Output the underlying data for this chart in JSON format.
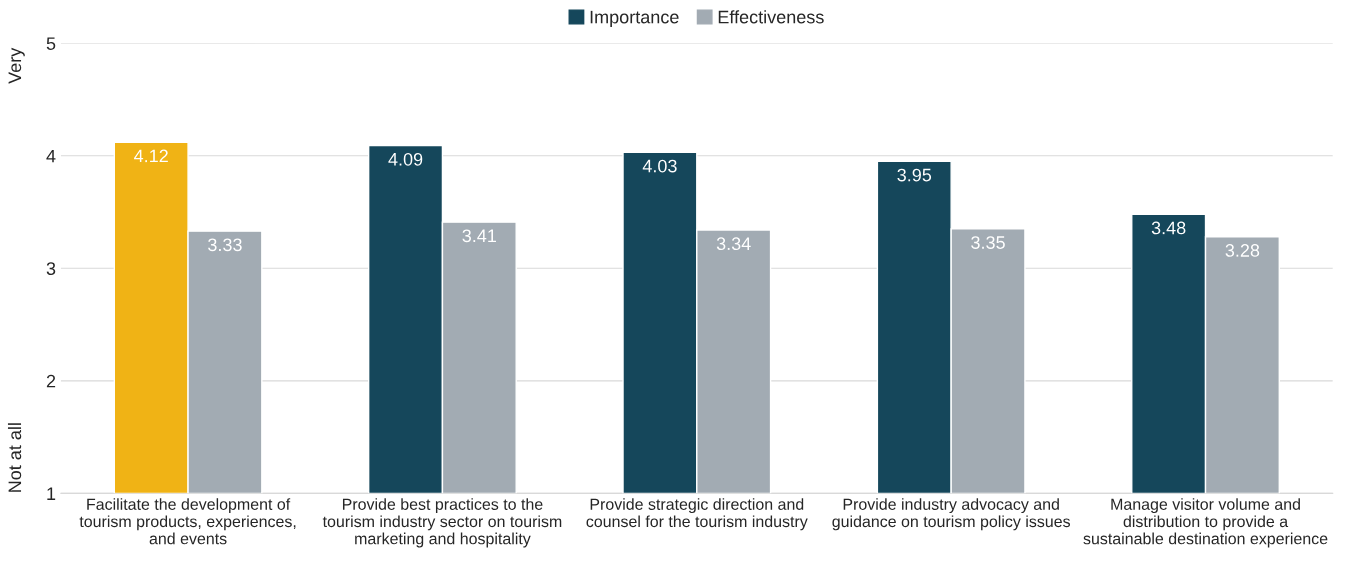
{
  "chart_data": {
    "type": "bar",
    "categories": [
      "Facilitate the development of\ntourism products, experiences,\nand events",
      "Provide best practices to the\ntourism industry sector on tourism\nmarketing and hospitality",
      "Provide strategic direction and\ncounsel for the tourism industry",
      "Provide industry advocacy and\nguidance on tourism policy issues",
      "Manage visitor volume and\ndistribution to provide a\nsustainable destination experience"
    ],
    "series": [
      {
        "name": "Importance",
        "color": "#15475b",
        "colors": [
          "#f0b315",
          "#15475b",
          "#15475b",
          "#15475b",
          "#15475b"
        ],
        "values": [
          4.12,
          4.09,
          4.03,
          3.95,
          3.48
        ]
      },
      {
        "name": "Effectiveness",
        "color": "#a2abb3",
        "values": [
          3.33,
          3.41,
          3.34,
          3.35,
          3.28
        ]
      }
    ],
    "ylim": [
      1,
      5
    ],
    "yticks": [
      1,
      2,
      3,
      4,
      5
    ],
    "grid": "y",
    "legend": "top",
    "data_labels": true,
    "annotations": [
      "Very",
      "Not at all"
    ]
  }
}
